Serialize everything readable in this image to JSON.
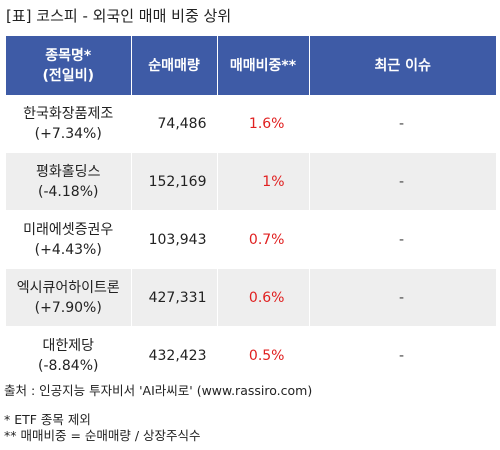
{
  "title": "[표] 코스피 - 외국인 매매 비중 상위",
  "table": {
    "headers": {
      "stock_line1": "종목명*",
      "stock_line2": "(전일비)",
      "net_volume": "순매매량",
      "trade_ratio": "매매비중**",
      "recent_issue": "최근 이슈"
    },
    "rows": [
      {
        "name": "한국화장품제조",
        "change": "(+7.34%)",
        "volume": "74,486",
        "ratio": "1.6%",
        "issue": "-"
      },
      {
        "name": "평화홀딩스",
        "change": "(-4.18%)",
        "volume": "152,169",
        "ratio": "1%",
        "issue": "-"
      },
      {
        "name": "미래에셋증권우",
        "change": "(+4.43%)",
        "volume": "103,943",
        "ratio": "0.7%",
        "issue": "-"
      },
      {
        "name": "엑시큐어하이트론",
        "change": "(+7.90%)",
        "volume": "427,331",
        "ratio": "0.6%",
        "issue": "-"
      },
      {
        "name": "대한제당",
        "change": "(-8.84%)",
        "volume": "432,423",
        "ratio": "0.5%",
        "issue": "-"
      }
    ]
  },
  "footer": {
    "source": "출처 : 인공지능 투자비서 'AI라씨로' (www.rassiro.com)",
    "note1": "* ETF 종목 제외",
    "note2": "** 매매비중 = 순매매량 / 상장주식수"
  },
  "colors": {
    "header_bg": "#3e5ba6",
    "header_text": "#ffffff",
    "ratio_text": "#e02020",
    "alt_row_bg": "#eeeeee"
  }
}
